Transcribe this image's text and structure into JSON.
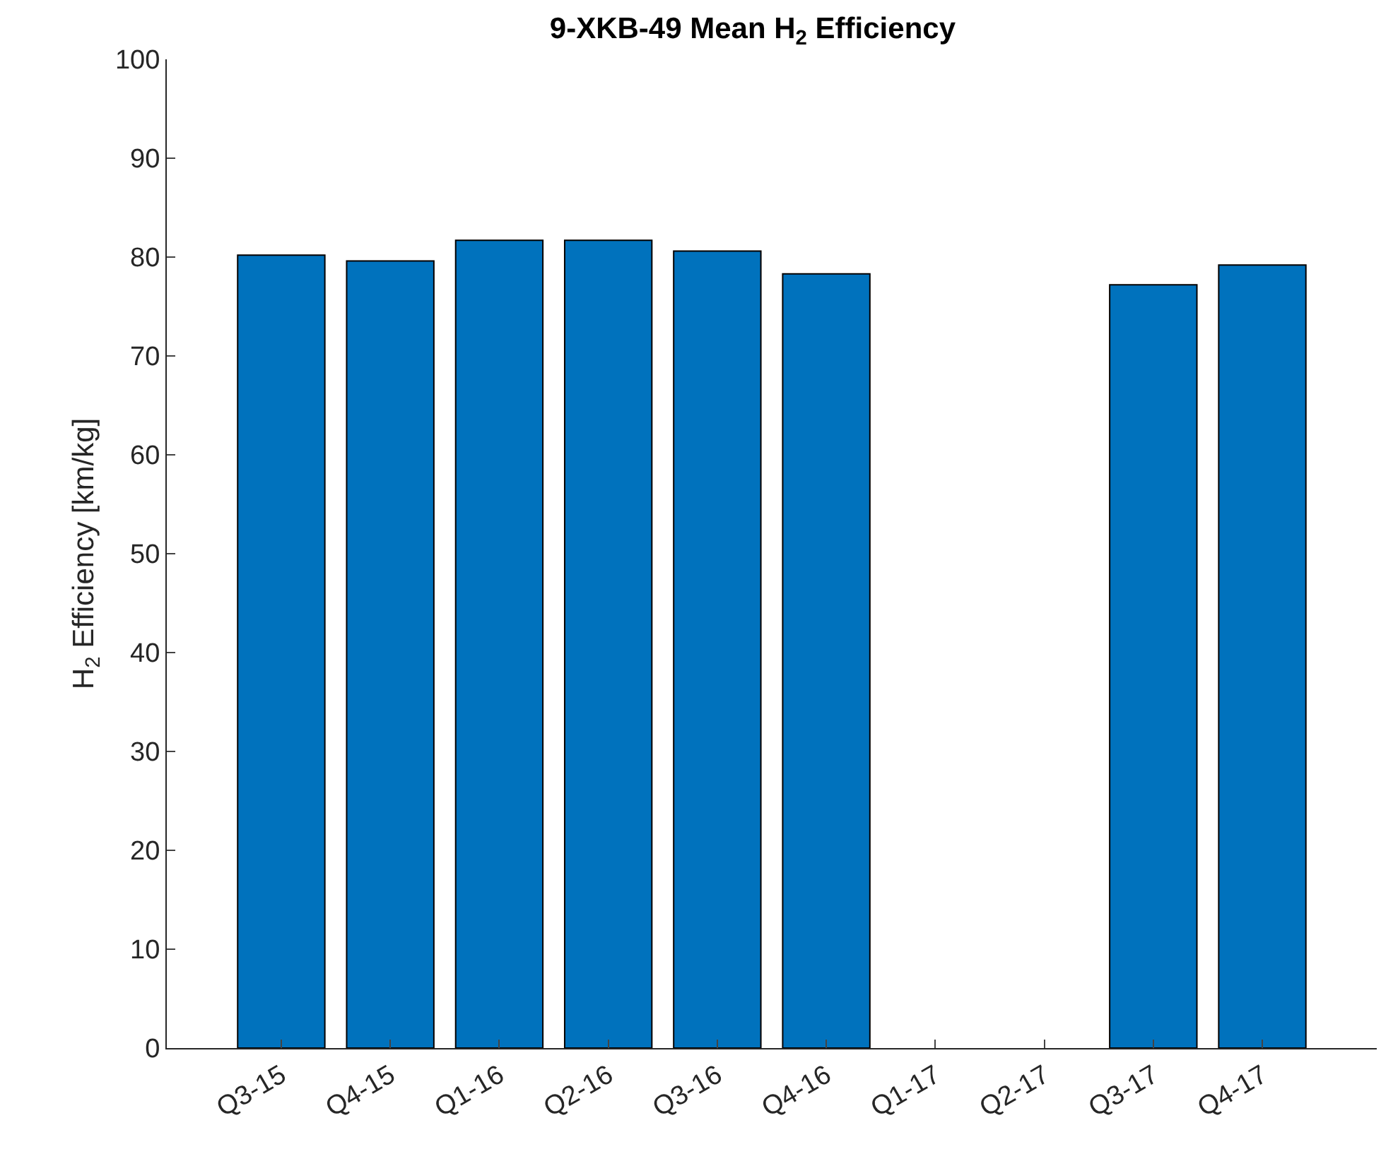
{
  "chart_data": {
    "type": "bar",
    "title": "9-XKB-49 Mean H$_{2}$ Efficiency",
    "ylabel": "H$_{2}$ Efficiency [km/kg]",
    "categories": [
      "Q3-15",
      "Q4-15",
      "Q1-16",
      "Q2-16",
      "Q3-16",
      "Q4-16",
      "Q1-17",
      "Q2-17",
      "Q3-17",
      "Q4-17"
    ],
    "values": [
      80.2,
      79.6,
      81.7,
      81.7,
      80.6,
      78.3,
      null,
      null,
      77.2,
      79.2
    ],
    "color": "#0072bd",
    "ylim": [
      0,
      100
    ],
    "yticks": [
      0,
      10,
      20,
      30,
      40,
      50,
      60,
      70,
      80,
      90,
      100
    ],
    "grid": false
  }
}
